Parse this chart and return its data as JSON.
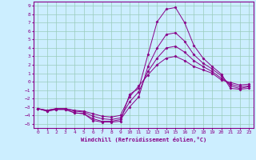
{
  "xlabel": "Windchill (Refroidissement éolien,°C)",
  "background_color": "#cceeff",
  "grid_color": "#99ccbb",
  "line_color": "#880088",
  "xlim": [
    -0.5,
    23.5
  ],
  "ylim": [
    -5.5,
    9.5
  ],
  "xticks": [
    0,
    1,
    2,
    3,
    4,
    5,
    6,
    7,
    8,
    9,
    10,
    11,
    12,
    13,
    14,
    15,
    16,
    17,
    18,
    19,
    20,
    21,
    22,
    23
  ],
  "yticks": [
    -5,
    -4,
    -3,
    -2,
    -1,
    0,
    1,
    2,
    3,
    4,
    5,
    6,
    7,
    8,
    9
  ],
  "series": [
    [
      -3.2,
      -3.5,
      -3.3,
      -3.3,
      -3.7,
      -3.8,
      -4.6,
      -4.8,
      -4.8,
      -4.7,
      -1.5,
      -0.8,
      3.2,
      7.1,
      8.6,
      8.8,
      7.0,
      4.3,
      2.8,
      1.8,
      0.9,
      -0.8,
      -0.9,
      -0.8
    ],
    [
      -3.2,
      -3.5,
      -3.3,
      -3.3,
      -3.7,
      -3.8,
      -4.4,
      -4.7,
      -4.7,
      -4.5,
      -3.0,
      -1.8,
      1.8,
      4.0,
      5.6,
      5.8,
      4.8,
      3.2,
      2.2,
      1.5,
      0.7,
      -0.5,
      -0.8,
      -0.6
    ],
    [
      -3.2,
      -3.4,
      -3.2,
      -3.2,
      -3.5,
      -3.6,
      -4.1,
      -4.4,
      -4.5,
      -4.3,
      -2.4,
      -1.2,
      1.2,
      2.8,
      4.0,
      4.2,
      3.5,
      2.5,
      1.8,
      1.2,
      0.4,
      -0.3,
      -0.6,
      -0.5
    ],
    [
      -3.2,
      -3.4,
      -3.2,
      -3.2,
      -3.4,
      -3.5,
      -3.8,
      -4.1,
      -4.2,
      -4.0,
      -1.8,
      -0.5,
      0.8,
      2.0,
      2.8,
      3.0,
      2.5,
      1.8,
      1.4,
      1.0,
      0.2,
      -0.1,
      -0.4,
      -0.3
    ]
  ]
}
